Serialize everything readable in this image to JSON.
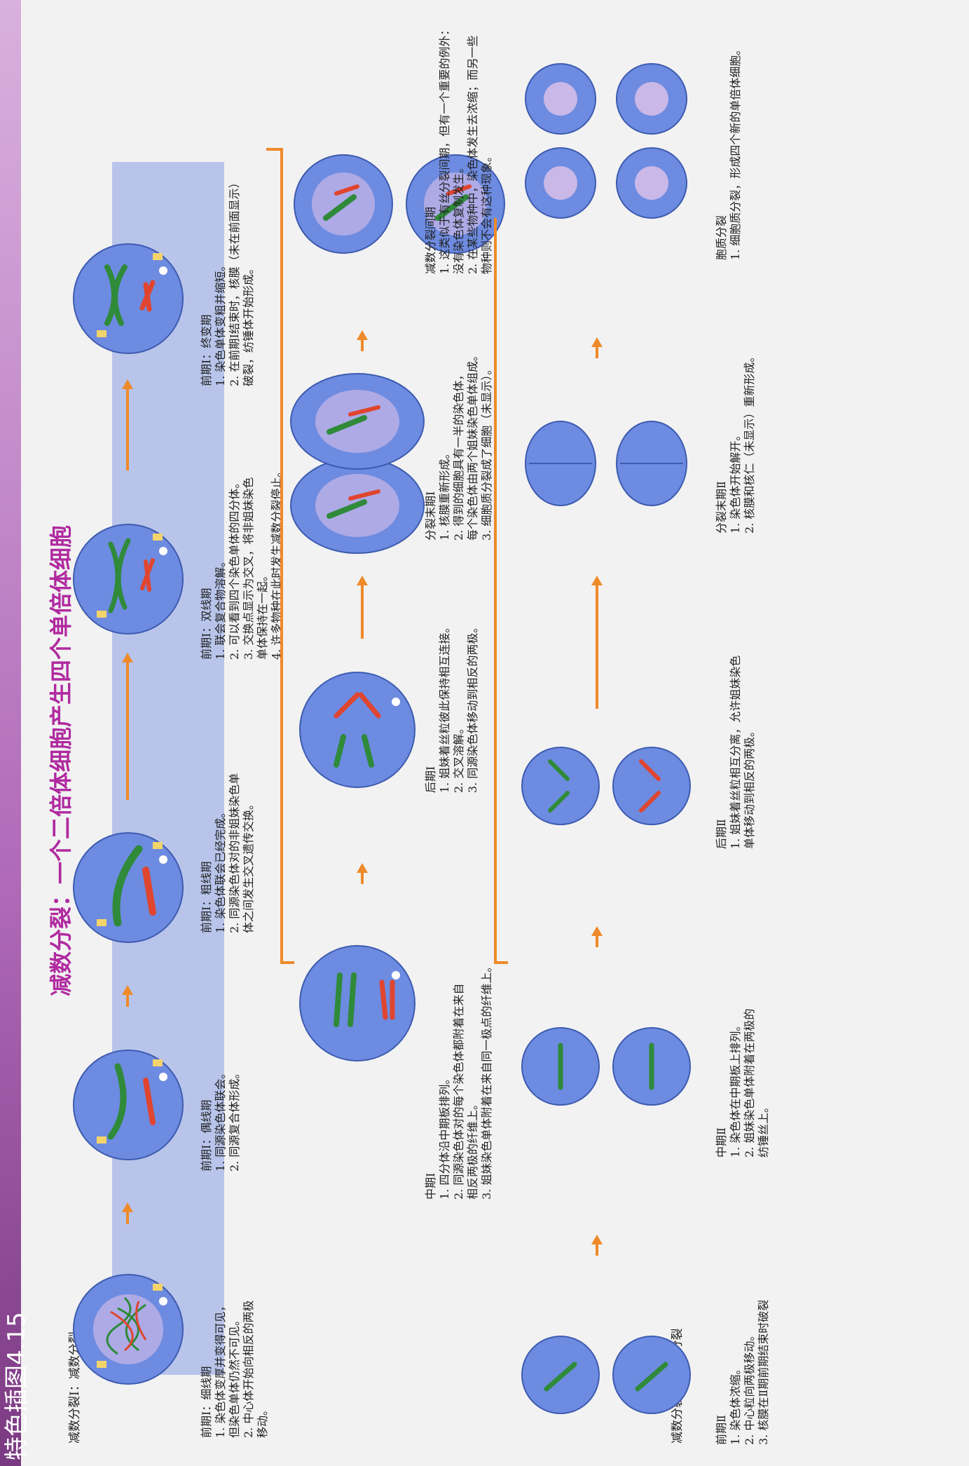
{
  "sidebar_title": "特色插图4.15",
  "title": "减数分裂：一个二倍体细胞产生四个单倍体细胞",
  "meiosis1_label": "减数分裂Ⅰ：减数分裂",
  "meiosis2_label": "减数分裂Ⅱ：等级分裂",
  "colors": {
    "accent": "#b02aa0",
    "arrow": "#ef8a2a",
    "band": "#b8c4ea",
    "cell": "#5f7fd6"
  },
  "row1": [
    {
      "title": "前期Ⅰ：细线期",
      "items": [
        "1. 染色体变厚并变得可见，",
        "   但染色单体仍然不可见。",
        "2. 中心体开始向相反的两极",
        "   移动。"
      ]
    },
    {
      "title": "前期Ⅰ：偶线期",
      "items": [
        "1. 同源染色体联会。",
        "2. 同源复合体形成。"
      ]
    },
    {
      "title": "前期Ⅰ：粗线期",
      "items": [
        "1. 染色体联会已经完成。",
        "2. 同源染色体对的非姐妹染色单",
        "   体之间发生交叉遗传交换。"
      ]
    },
    {
      "title": "前期Ⅰ：双线期",
      "items": [
        "1. 联会复合物溶解。",
        "2. 可以看到四个染色单体的四分体。",
        "3. 交换点显示为交叉，将非姐妹染色",
        "   单体保持在一起。",
        "4. 许多物种在此时发生减数分裂停止。"
      ]
    },
    {
      "title": "前期Ⅰ：终变期",
      "items": [
        "1. 染色单体变粗并缩短。",
        "2. 在前期Ⅰ结束时，核膜（未在前面显示）",
        "   破裂，纺锤体开始形成。"
      ]
    }
  ],
  "row2": [
    {
      "title": "中期Ⅰ",
      "items": [
        "1. 四分体沿中期板排列。",
        "2. 同源染色体对的每个染色体都附着在来自",
        "   相反两极的纤维上。",
        "3. 姐妹染色单体附着在来自同一极点的纤维上。"
      ]
    },
    {
      "title": "后期Ⅰ",
      "items": [
        "1. 姐妹着丝粒彼此保持相互连接。",
        "2. 交叉溶解。",
        "3. 同源染色体移动到相反的两极。"
      ]
    },
    {
      "title": "分裂末期Ⅰ",
      "items": [
        "1. 核膜重新形成。",
        "2. 得到的细胞具有一半的染色体，",
        "   每个染色体由两个姐妹染色单体组成。",
        "3. 细胞质分裂成了细胞（未显示）。"
      ]
    },
    {
      "title": "减数分裂间期",
      "items": [
        "1. 这类似于有丝分裂间期，但有一个重要的例外：",
        "   没有染色体复制发生。",
        "2. 在某些物种中，染色体发生去浓缩；而另一些",
        "   物种则不会有这种现象。"
      ]
    }
  ],
  "row3": [
    {
      "title": "前期Ⅱ",
      "items": [
        "1. 染色体浓缩。",
        "2. 中心粒向两极移动。",
        "3. 核膜在Ⅱ期前期结束时破裂"
      ]
    },
    {
      "title": "中期Ⅱ",
      "items": [
        "1. 染色体在中期板上排列。",
        "2. 姐妹染色单体附着在两极的",
        "   纺锤丝上。"
      ]
    },
    {
      "title": "后期Ⅱ",
      "items": [
        "1. 姐妹着丝粒相互分离，允许姐妹染色",
        "   单体移动到相反的两极。"
      ]
    },
    {
      "title": "分裂末期Ⅱ",
      "items": [
        "1. 染色体开始解开。",
        "2. 核膜和核仁（未显示）重新形成。"
      ]
    },
    {
      "title": "胞质分裂",
      "items": [
        "1. 细胞质分裂，形成四个新的单倍体细胞。"
      ]
    }
  ]
}
